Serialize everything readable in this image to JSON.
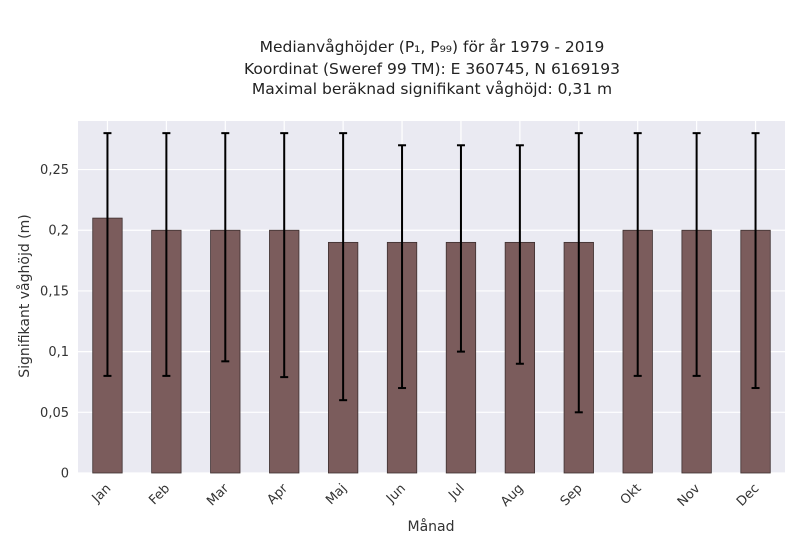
{
  "chart_data": {
    "type": "bar",
    "title_lines": [
      "Medianvåghöjder (P₁, P₉₉) för år 1979 - 2019",
      "Koordinat (Sweref 99 TM): E 360745, N 6169193",
      "Maximal beräknad signifikant våghöjd: 0,31 m"
    ],
    "xlabel": "Månad",
    "ylabel": "Signifikant våghöjd (m)",
    "categories": [
      "Jan",
      "Feb",
      "Mar",
      "Apr",
      "Maj",
      "Jun",
      "Jul",
      "Aug",
      "Sep",
      "Okt",
      "Nov",
      "Dec"
    ],
    "values": [
      0.21,
      0.2,
      0.2,
      0.2,
      0.19,
      0.19,
      0.19,
      0.19,
      0.19,
      0.2,
      0.2,
      0.2
    ],
    "p1": [
      0.08,
      0.08,
      0.092,
      0.079,
      0.06,
      0.07,
      0.1,
      0.09,
      0.05,
      0.08,
      0.08,
      0.07
    ],
    "p99": [
      0.28,
      0.28,
      0.28,
      0.28,
      0.28,
      0.27,
      0.27,
      0.27,
      0.28,
      0.28,
      0.28,
      0.28
    ],
    "ylim": [
      0,
      0.29
    ],
    "yticks": [
      0,
      0.05,
      0.1,
      0.15,
      0.2,
      0.25
    ],
    "ytick_labels": [
      "0",
      "0,05",
      "0,1",
      "0,15",
      "0,2",
      "0,25"
    ],
    "grid": true,
    "colors": {
      "bar": "#7b5c5c",
      "bar_edge": "#3d2f2f",
      "error_bar": "#000000",
      "plot_background": "#eaeaf2",
      "grid": "#ffffff"
    }
  }
}
